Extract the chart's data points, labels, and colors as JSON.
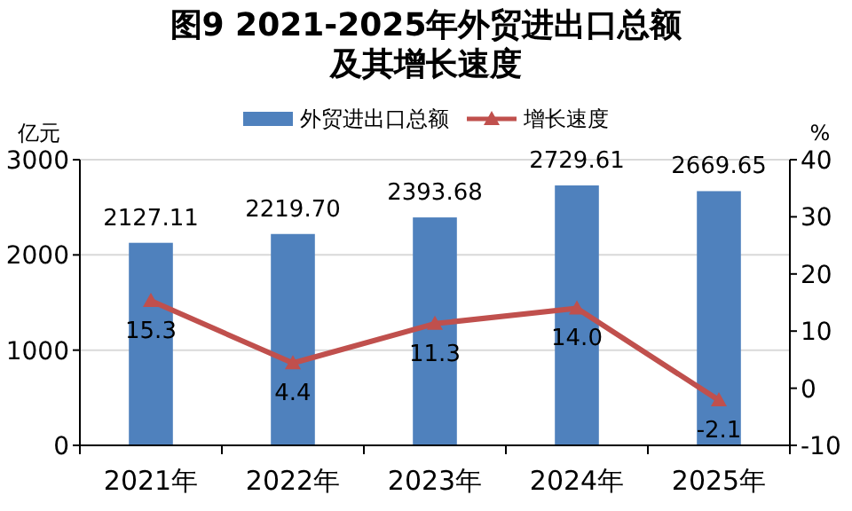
{
  "chart_data": {
    "type": "bar",
    "title": "图9  2021-2025年外贸进出口总额及其增长速度",
    "ylabel": "亿元",
    "y2label": "%",
    "categories": [
      "2021年",
      "2022年",
      "2023年",
      "2024年",
      "2025年"
    ],
    "series": [
      {
        "name": "外贸进出口总额",
        "color": "#4f81bd",
        "values": [
          2127.11,
          2219.7,
          2393.68,
          2729.61,
          2669.65
        ],
        "value_labels": [
          "2127.11",
          "2219.70",
          "2393.68",
          "2729.61",
          "2669.65"
        ]
      },
      {
        "name": "增长速度",
        "type": "line",
        "axis": "y2",
        "color": "#c0504d",
        "marker": "triangle",
        "values": [
          15.3,
          4.4,
          11.3,
          14.0,
          -2.1
        ],
        "value_labels": [
          "15.3",
          "4.4",
          "11.3",
          "14.0",
          "-2.1"
        ]
      }
    ],
    "ylim": [
      0,
      3000
    ],
    "yticks": [
      0,
      1000,
      2000,
      3000
    ],
    "y2lim": [
      -10,
      40
    ],
    "y2ticks": [
      -10,
      0,
      10,
      20,
      30,
      40
    ],
    "grid": "y",
    "legend": "top"
  }
}
